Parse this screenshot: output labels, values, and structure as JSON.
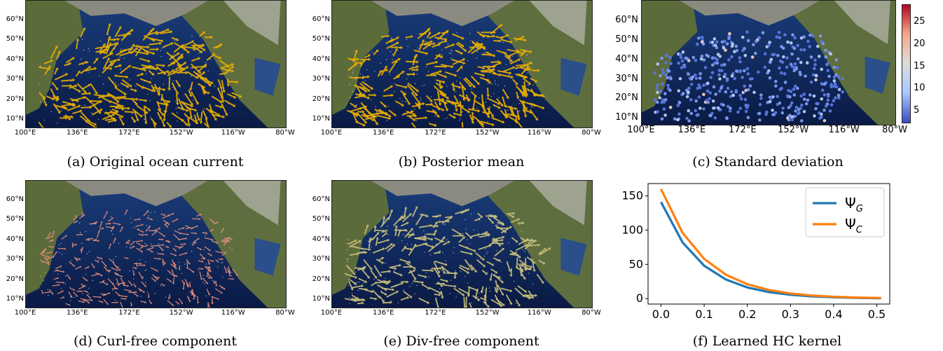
{
  "panels": [
    {
      "caption": "(a) Original ocean current",
      "arrow_color": "#e6ac00"
    },
    {
      "caption": "(b) Posterior mean",
      "arrow_color": "#e6ac00"
    },
    {
      "caption": "(c) Standard deviation"
    },
    {
      "caption": "(d) Curl-free component",
      "arrow_color": "#e8907a"
    },
    {
      "caption": "(e) Div-free component",
      "arrow_color": "#c9bf7a"
    },
    {
      "caption": "(f) Learned HC kernel"
    }
  ],
  "map_axes": {
    "lat_ticks": [
      "60°N",
      "50°N",
      "40°N",
      "30°N",
      "20°N",
      "10°N"
    ],
    "lon_ticks": [
      "100°E",
      "136°E",
      "172°E",
      "152°W",
      "116°W",
      "80°W"
    ]
  },
  "colorbar": {
    "ticks": [
      "25",
      "20",
      "15",
      "10",
      "5"
    ],
    "range": [
      2.5,
      29
    ],
    "colors": [
      "#3b4cc0",
      "#aac7fd",
      "#dddddd",
      "#f7a889",
      "#b40426"
    ]
  },
  "chart_data": {
    "type": "line",
    "title": "(f) Learned HC kernel",
    "xlabel": "",
    "ylabel": "",
    "xlim": [
      -0.03,
      0.53
    ],
    "ylim": [
      -8,
      168
    ],
    "xticks": [
      "0.0",
      "0.1",
      "0.2",
      "0.3",
      "0.4",
      "0.5"
    ],
    "yticks": [
      "0",
      "50",
      "100",
      "150"
    ],
    "legend_position": "top-right",
    "x": [
      0.0,
      0.05,
      0.1,
      0.15,
      0.2,
      0.25,
      0.3,
      0.35,
      0.4,
      0.45,
      0.5,
      0.51
    ],
    "series": [
      {
        "name": "Ψ",
        "subscript": "G",
        "color": "#1f77b4",
        "values": [
          141,
          82,
          48,
          28,
          16.3,
          9.5,
          5.5,
          3.2,
          1.9,
          1.1,
          0.6,
          0.6
        ]
      },
      {
        "name": "Ψ",
        "subscript": "C",
        "color": "#ff7f0e",
        "values": [
          160,
          96,
          58,
          35,
          21,
          12.5,
          7.5,
          4.5,
          2.7,
          1.6,
          1.0,
          0.9
        ]
      }
    ]
  }
}
